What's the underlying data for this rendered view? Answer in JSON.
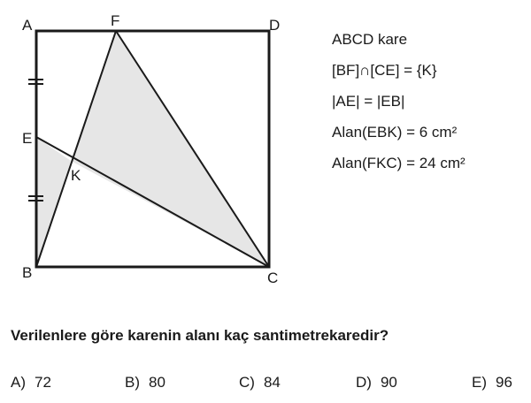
{
  "figure": {
    "point_labels": {
      "A": "A",
      "B": "B",
      "C": "C",
      "D": "D",
      "E": "E",
      "F": "F",
      "K": "K"
    },
    "shaded_fill": "#e6e6e6",
    "line_color": "#1a1a1a"
  },
  "givens": [
    "ABCD kare",
    "[BF]∩[CE] = {K}",
    "|AE| = |EB|",
    "Alan(EBK) = 6 cm²",
    "Alan(FKC) = 24 cm²"
  ],
  "question": "Verilenlere göre karenin alanı kaç santimetrekaredir?",
  "options": [
    {
      "letter": "A)",
      "value": "72"
    },
    {
      "letter": "B)",
      "value": "80"
    },
    {
      "letter": "C)",
      "value": "84"
    },
    {
      "letter": "D)",
      "value": "90"
    },
    {
      "letter": "E)",
      "value": "96"
    }
  ]
}
